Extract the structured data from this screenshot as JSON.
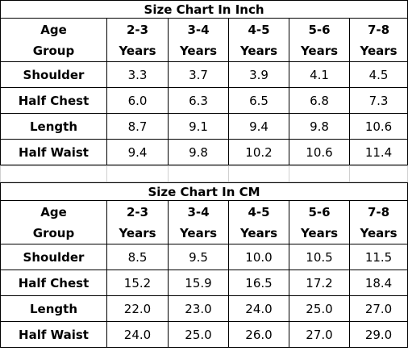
{
  "tables": [
    {
      "title": "Size Chart In Inch",
      "header": [
        "Age Group",
        "2-3 Years",
        "3-4 Years",
        "4-5 Years",
        "5-6 Years",
        "7-8 Years"
      ],
      "rows": [
        [
          "Shoulder",
          "3.3",
          "3.7",
          "3.9",
          "4.1",
          "4.5"
        ],
        [
          "Half Chest",
          "6.0",
          "6.3",
          "6.5",
          "6.8",
          "7.3"
        ],
        [
          "Length",
          "8.7",
          "9.1",
          "9.4",
          "9.8",
          "10.6"
        ],
        [
          "Half Waist",
          "9.4",
          "9.8",
          "10.2",
          "10.6",
          "11.4"
        ]
      ]
    },
    {
      "title": "Size Chart In CM",
      "header": [
        "Age Group",
        "2-3 Years",
        "3-4 Years",
        "4-5 Years",
        "5-6 Years",
        "7-8 Years"
      ],
      "rows": [
        [
          "Shoulder",
          "8.5",
          "9.5",
          "10.0",
          "10.5",
          "11.5"
        ],
        [
          "Half Chest",
          "15.2",
          "15.9",
          "16.5",
          "17.2",
          "18.4"
        ],
        [
          "Length",
          "22.0",
          "23.0",
          "24.0",
          "25.0",
          "27.0"
        ],
        [
          "Half Waist",
          "24.0",
          "25.0",
          "26.0",
          "27.0",
          "29.0"
        ]
      ]
    }
  ]
}
